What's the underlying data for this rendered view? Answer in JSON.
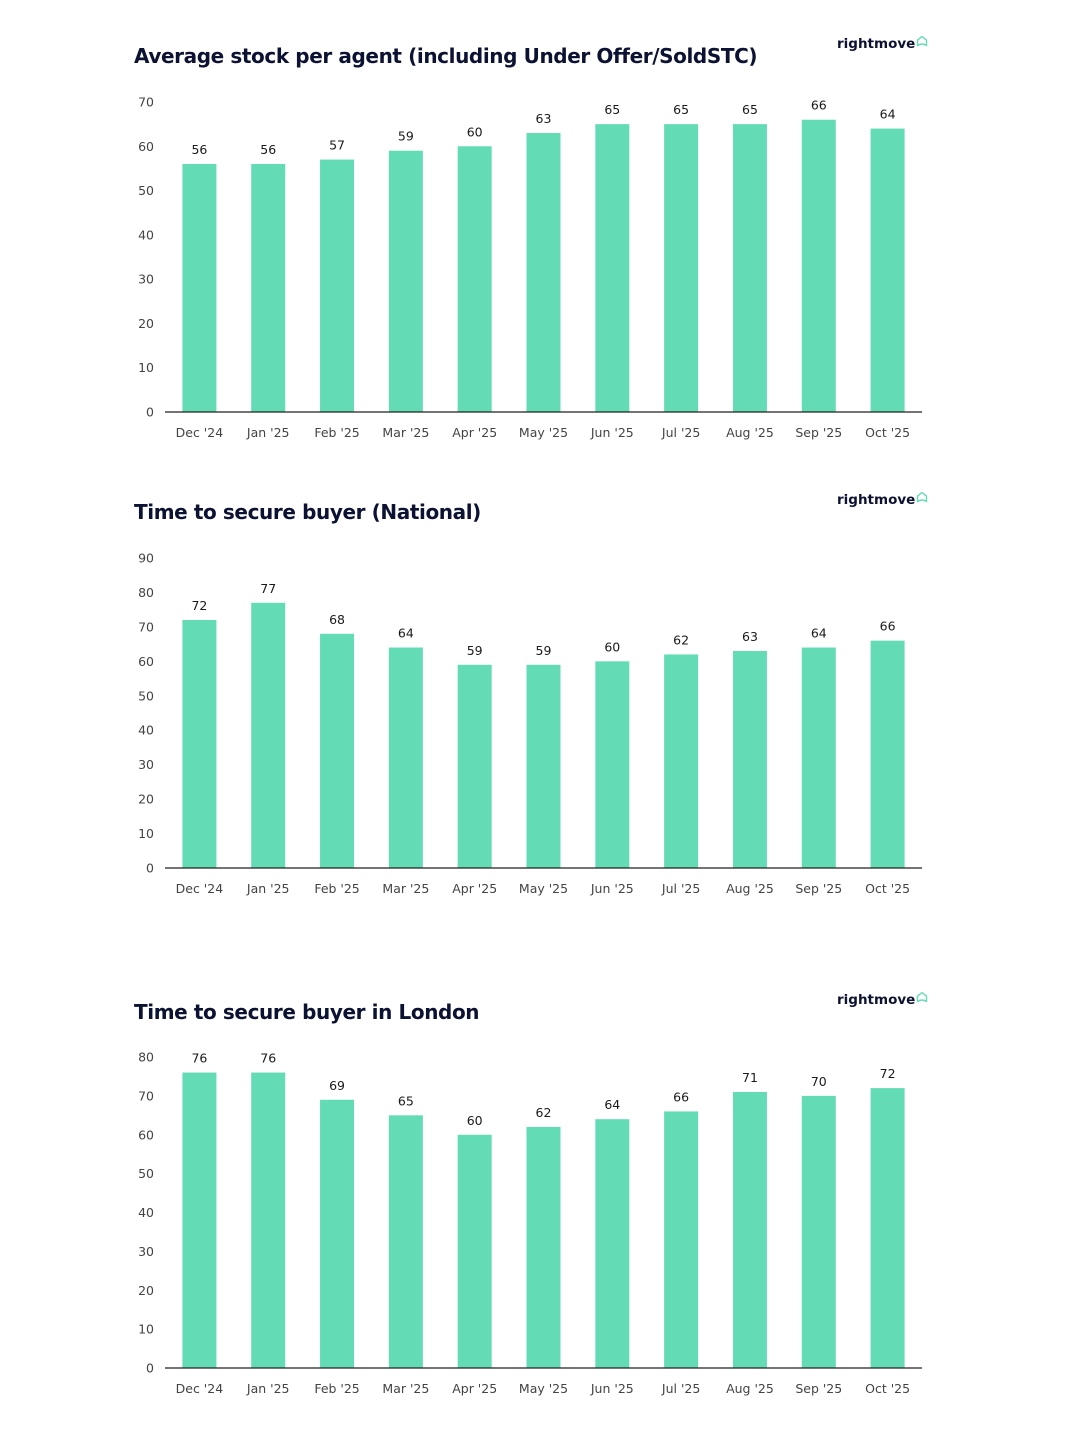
{
  "brand": {
    "name": "rightmove",
    "icon": "house-icon"
  },
  "colors": {
    "bar": "#63dbb5",
    "title": "#0c1232",
    "axis": "#222222",
    "brand_accent": "#63dbb5"
  },
  "chart_data": [
    {
      "type": "bar",
      "title": "Average stock per agent (including Under Offer/SoldSTC)",
      "xlabel": "",
      "ylabel": "",
      "categories": [
        "Dec '24",
        "Jan '25",
        "Feb '25",
        "Mar '25",
        "Apr '25",
        "May '25",
        "Jun '25",
        "Jul '25",
        "Aug '25",
        "Sep '25",
        "Oct '25"
      ],
      "values": [
        56,
        56,
        57,
        59,
        60,
        63,
        65,
        65,
        65,
        66,
        64
      ],
      "ylim": [
        0,
        70
      ],
      "yticks": [
        0,
        10,
        20,
        30,
        40,
        50,
        60,
        70
      ],
      "grid": false,
      "data_labels": true
    },
    {
      "type": "bar",
      "title": "Time to secure buyer (National)",
      "xlabel": "",
      "ylabel": "",
      "categories": [
        "Dec '24",
        "Jan '25",
        "Feb '25",
        "Mar '25",
        "Apr '25",
        "May '25",
        "Jun '25",
        "Jul '25",
        "Aug '25",
        "Sep '25",
        "Oct '25"
      ],
      "values": [
        72,
        77,
        68,
        64,
        59,
        59,
        60,
        62,
        63,
        64,
        66
      ],
      "ylim": [
        0,
        90
      ],
      "yticks": [
        0,
        10,
        20,
        30,
        40,
        50,
        60,
        70,
        80,
        90
      ],
      "grid": false,
      "data_labels": true
    },
    {
      "type": "bar",
      "title": "Time to secure buyer in London",
      "xlabel": "",
      "ylabel": "",
      "categories": [
        "Dec '24",
        "Jan '25",
        "Feb '25",
        "Mar '25",
        "Apr '25",
        "May '25",
        "Jun '25",
        "Jul '25",
        "Aug '25",
        "Sep '25",
        "Oct '25"
      ],
      "values": [
        76,
        76,
        69,
        65,
        60,
        62,
        64,
        66,
        71,
        70,
        72
      ],
      "ylim": [
        0,
        80
      ],
      "yticks": [
        0,
        10,
        20,
        30,
        40,
        50,
        60,
        70,
        80
      ],
      "grid": false,
      "data_labels": true
    }
  ]
}
